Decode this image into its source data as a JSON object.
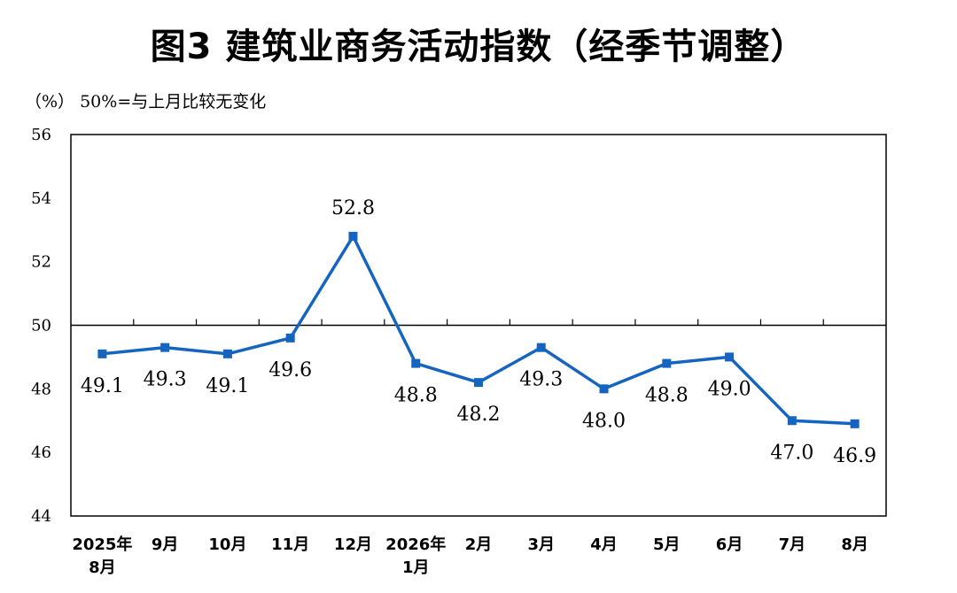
{
  "header": {
    "title": "图3  建筑业商务活动指数（经季节调整）",
    "subtitle": "（%） 50%=与上月比较无变化"
  },
  "chart_data": {
    "type": "line",
    "title": "图3  建筑业商务活动指数（经季节调整）",
    "ylabel": "（%）",
    "note": "50%=与上月比较无变化",
    "categories": [
      [
        "2025年",
        "8月"
      ],
      [
        "9月"
      ],
      [
        "10月"
      ],
      [
        "11月"
      ],
      [
        "12月"
      ],
      [
        "2026年",
        "1月"
      ],
      [
        "2月"
      ],
      [
        "3月"
      ],
      [
        "4月"
      ],
      [
        "5月"
      ],
      [
        "6月"
      ],
      [
        "7月"
      ],
      [
        "8月"
      ]
    ],
    "values": [
      49.1,
      49.3,
      49.1,
      49.6,
      52.8,
      48.8,
      48.2,
      49.3,
      48.0,
      48.8,
      49.0,
      47.0,
      46.9
    ],
    "value_labels": [
      "49.1",
      "49.3",
      "49.1",
      "49.6",
      "52.8",
      "48.8",
      "48.2",
      "49.3",
      "48.0",
      "48.8",
      "49.0",
      "47.0",
      "46.9"
    ],
    "label_positions": [
      "below",
      "below",
      "below",
      "below",
      "above",
      "below",
      "below",
      "below",
      "below",
      "below",
      "below",
      "below",
      "below"
    ],
    "ylim": [
      44,
      56
    ],
    "yticks": [
      44,
      46,
      48,
      50,
      52,
      54,
      56
    ],
    "reference_line": 50,
    "grid": false,
    "colors": {
      "line": "#1565c0",
      "axis": "#000000"
    }
  }
}
